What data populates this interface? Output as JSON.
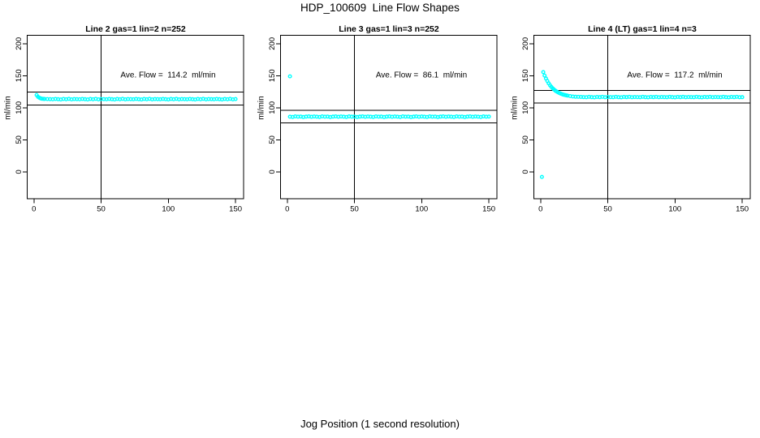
{
  "figure": {
    "title": "HDP_100609  Line Flow Shapes",
    "x_axis_label": "Jog Position (1 second resolution)",
    "point_color": "#00FFFF",
    "axis_color": "#000000",
    "background": "#FFFFFF"
  },
  "chart_data": [
    {
      "type": "scatter",
      "title": "Line 2 gas=1 lin=2 n=252",
      "annotation": "Ave. Flow =  114.2  ml/min",
      "ave_flow": 114.2,
      "n": 252,
      "ylabel": "ml/min",
      "xticks": [
        0,
        50,
        100,
        150
      ],
      "yticks": [
        0,
        50,
        100,
        150,
        200
      ],
      "xlim": [
        -5,
        156
      ],
      "ylim": [
        -42,
        213
      ],
      "vline_x": 50,
      "hlines": [
        124.2,
        104.2
      ],
      "outliers": [],
      "points": [
        [
          2,
          119.8
        ],
        [
          3,
          117.1
        ],
        [
          4,
          115.5
        ],
        [
          5,
          114.6
        ],
        [
          6,
          114.1
        ],
        [
          7,
          113.8
        ],
        [
          8,
          113.6
        ],
        [
          10,
          113.5
        ],
        [
          12,
          113.4
        ],
        [
          14,
          113.1
        ],
        [
          16,
          113.7
        ],
        [
          18,
          113.3
        ],
        [
          20,
          112.9
        ],
        [
          22,
          113.6
        ],
        [
          24,
          113.2
        ],
        [
          26,
          113.8
        ],
        [
          28,
          113.0
        ],
        [
          30,
          113.5
        ],
        [
          32,
          113.4
        ],
        [
          34,
          113.1
        ],
        [
          36,
          113.7
        ],
        [
          38,
          113.3
        ],
        [
          40,
          112.9
        ],
        [
          42,
          113.6
        ],
        [
          44,
          113.2
        ],
        [
          46,
          113.8
        ],
        [
          48,
          113.0
        ],
        [
          50,
          113.5
        ],
        [
          52,
          113.4
        ],
        [
          54,
          113.1
        ],
        [
          56,
          113.7
        ],
        [
          58,
          113.3
        ],
        [
          60,
          112.9
        ],
        [
          62,
          113.6
        ],
        [
          64,
          113.2
        ],
        [
          66,
          113.8
        ],
        [
          68,
          113.0
        ],
        [
          70,
          113.5
        ],
        [
          72,
          113.4
        ],
        [
          74,
          113.1
        ],
        [
          76,
          113.7
        ],
        [
          78,
          113.3
        ],
        [
          80,
          112.9
        ],
        [
          82,
          113.6
        ],
        [
          84,
          113.2
        ],
        [
          86,
          113.8
        ],
        [
          88,
          113.0
        ],
        [
          90,
          113.5
        ],
        [
          92,
          113.4
        ],
        [
          94,
          113.1
        ],
        [
          96,
          113.7
        ],
        [
          98,
          113.3
        ],
        [
          100,
          112.9
        ],
        [
          102,
          113.6
        ],
        [
          104,
          113.2
        ],
        [
          106,
          113.8
        ],
        [
          108,
          113.0
        ],
        [
          110,
          113.5
        ],
        [
          112,
          113.4
        ],
        [
          114,
          113.1
        ],
        [
          116,
          113.7
        ],
        [
          118,
          113.3
        ],
        [
          120,
          112.9
        ],
        [
          122,
          113.6
        ],
        [
          124,
          113.2
        ],
        [
          126,
          113.8
        ],
        [
          128,
          113.0
        ],
        [
          130,
          113.5
        ],
        [
          132,
          113.4
        ],
        [
          134,
          113.1
        ],
        [
          136,
          113.7
        ],
        [
          138,
          113.3
        ],
        [
          140,
          112.9
        ],
        [
          142,
          113.6
        ],
        [
          144,
          113.2
        ],
        [
          146,
          113.8
        ],
        [
          148,
          113.0
        ],
        [
          150,
          113.5
        ]
      ]
    },
    {
      "type": "scatter",
      "title": "Line 3 gas=1 lin=3 n=252",
      "annotation": "Ave. Flow =  86.1  ml/min",
      "ave_flow": 86.1,
      "n": 252,
      "ylabel": "ml/min",
      "xticks": [
        0,
        50,
        100,
        150
      ],
      "yticks": [
        0,
        50,
        100,
        150,
        200
      ],
      "xlim": [
        -5,
        156
      ],
      "ylim": [
        -42,
        213
      ],
      "vline_x": 50,
      "hlines": [
        96.1,
        76.1
      ],
      "outliers": [
        [
          2,
          149
        ]
      ],
      "points": [
        [
          2,
          86.0
        ],
        [
          4,
          85.6
        ],
        [
          6,
          86.4
        ],
        [
          8,
          85.9
        ],
        [
          10,
          86.2
        ],
        [
          12,
          85.5
        ],
        [
          14,
          86.1
        ],
        [
          16,
          86.5
        ],
        [
          18,
          85.8
        ],
        [
          20,
          86.3
        ],
        [
          22,
          86.0
        ],
        [
          24,
          85.6
        ],
        [
          26,
          86.4
        ],
        [
          28,
          85.9
        ],
        [
          30,
          86.2
        ],
        [
          32,
          85.5
        ],
        [
          34,
          86.1
        ],
        [
          36,
          86.5
        ],
        [
          38,
          85.8
        ],
        [
          40,
          86.3
        ],
        [
          42,
          86.0
        ],
        [
          44,
          85.6
        ],
        [
          46,
          86.4
        ],
        [
          48,
          85.9
        ],
        [
          50,
          86.2
        ],
        [
          52,
          85.5
        ],
        [
          54,
          86.1
        ],
        [
          56,
          86.5
        ],
        [
          58,
          85.8
        ],
        [
          60,
          86.3
        ],
        [
          62,
          86.0
        ],
        [
          64,
          85.6
        ],
        [
          66,
          86.4
        ],
        [
          68,
          85.9
        ],
        [
          70,
          86.2
        ],
        [
          72,
          85.5
        ],
        [
          74,
          86.1
        ],
        [
          76,
          86.5
        ],
        [
          78,
          85.8
        ],
        [
          80,
          86.3
        ],
        [
          82,
          86.0
        ],
        [
          84,
          85.6
        ],
        [
          86,
          86.4
        ],
        [
          88,
          85.9
        ],
        [
          90,
          86.2
        ],
        [
          92,
          85.5
        ],
        [
          94,
          86.1
        ],
        [
          96,
          86.5
        ],
        [
          98,
          85.8
        ],
        [
          100,
          86.3
        ],
        [
          102,
          86.0
        ],
        [
          104,
          85.6
        ],
        [
          106,
          86.4
        ],
        [
          108,
          85.9
        ],
        [
          110,
          86.2
        ],
        [
          112,
          85.5
        ],
        [
          114,
          86.1
        ],
        [
          116,
          86.5
        ],
        [
          118,
          85.8
        ],
        [
          120,
          86.3
        ],
        [
          122,
          86.0
        ],
        [
          124,
          85.6
        ],
        [
          126,
          86.4
        ],
        [
          128,
          85.9
        ],
        [
          130,
          86.2
        ],
        [
          132,
          85.5
        ],
        [
          134,
          86.1
        ],
        [
          136,
          86.5
        ],
        [
          138,
          85.8
        ],
        [
          140,
          86.3
        ],
        [
          142,
          86.0
        ],
        [
          144,
          85.6
        ],
        [
          146,
          86.4
        ],
        [
          148,
          85.9
        ],
        [
          150,
          86.2
        ]
      ]
    },
    {
      "type": "scatter",
      "title": "Line 4 (LT) gas=1 lin=4 n=3",
      "annotation": "Ave. Flow =  117.2  ml/min",
      "ave_flow": 117.2,
      "n": 3,
      "ylabel": "ml/min",
      "xticks": [
        0,
        50,
        100,
        150
      ],
      "yticks": [
        0,
        50,
        100,
        150,
        200
      ],
      "xlim": [
        -5,
        156
      ],
      "ylim": [
        -42,
        213
      ],
      "vline_x": 50,
      "hlines": [
        127.2,
        107.2
      ],
      "outliers": [
        [
          1,
          -8
        ]
      ],
      "points": [
        [
          2,
          155.5
        ],
        [
          3,
          150.2
        ],
        [
          4,
          145.6
        ],
        [
          5,
          141.6
        ],
        [
          6,
          138.1
        ],
        [
          7,
          135.1
        ],
        [
          8,
          132.5
        ],
        [
          9,
          130.2
        ],
        [
          10,
          128.3
        ],
        [
          11,
          126.6
        ],
        [
          12,
          125.2
        ],
        [
          13,
          123.9
        ],
        [
          14,
          122.9
        ],
        [
          15,
          121.9
        ],
        [
          16,
          121.1
        ],
        [
          17,
          120.4
        ],
        [
          18,
          119.8
        ],
        [
          19,
          119.3
        ],
        [
          20,
          118.8
        ],
        [
          22,
          118.1
        ],
        [
          24,
          117.5
        ],
        [
          26,
          117.1
        ],
        [
          28,
          116.9
        ],
        [
          30,
          116.8
        ],
        [
          32,
          116.6
        ],
        [
          34,
          116.3
        ],
        [
          36,
          116.9
        ],
        [
          38,
          116.5
        ],
        [
          40,
          116.2
        ],
        [
          42,
          116.8
        ],
        [
          44,
          116.4
        ],
        [
          46,
          117.0
        ],
        [
          48,
          116.3
        ],
        [
          50,
          116.7
        ],
        [
          52,
          116.6
        ],
        [
          54,
          116.3
        ],
        [
          56,
          116.9
        ],
        [
          58,
          116.5
        ],
        [
          60,
          116.2
        ],
        [
          62,
          116.8
        ],
        [
          64,
          116.4
        ],
        [
          66,
          117.0
        ],
        [
          68,
          116.3
        ],
        [
          70,
          116.7
        ],
        [
          72,
          116.6
        ],
        [
          74,
          116.3
        ],
        [
          76,
          116.9
        ],
        [
          78,
          116.5
        ],
        [
          80,
          116.2
        ],
        [
          82,
          116.8
        ],
        [
          84,
          116.4
        ],
        [
          86,
          117.0
        ],
        [
          88,
          116.3
        ],
        [
          90,
          116.7
        ],
        [
          92,
          116.6
        ],
        [
          94,
          116.3
        ],
        [
          96,
          116.9
        ],
        [
          98,
          116.5
        ],
        [
          100,
          116.2
        ],
        [
          102,
          116.8
        ],
        [
          104,
          116.4
        ],
        [
          106,
          117.0
        ],
        [
          108,
          116.3
        ],
        [
          110,
          116.7
        ],
        [
          112,
          116.6
        ],
        [
          114,
          116.3
        ],
        [
          116,
          116.9
        ],
        [
          118,
          116.5
        ],
        [
          120,
          116.2
        ],
        [
          122,
          116.8
        ],
        [
          124,
          116.4
        ],
        [
          126,
          117.0
        ],
        [
          128,
          116.3
        ],
        [
          130,
          116.7
        ],
        [
          132,
          116.6
        ],
        [
          134,
          116.3
        ],
        [
          136,
          116.9
        ],
        [
          138,
          116.5
        ],
        [
          140,
          116.2
        ],
        [
          142,
          116.8
        ],
        [
          144,
          116.4
        ],
        [
          146,
          117.0
        ],
        [
          148,
          116.3
        ],
        [
          150,
          116.5
        ]
      ]
    }
  ]
}
